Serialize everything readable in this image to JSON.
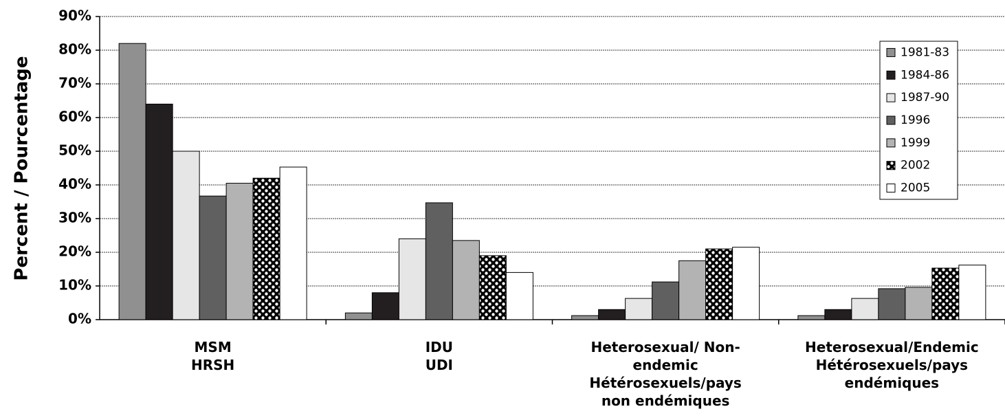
{
  "chart_data": {
    "type": "bar",
    "y_label": "Percent / Pourcentage",
    "categories": [
      "MSM\nHRSH",
      "IDU\nUDI",
      "Heterosexual/ Non-\nendemic\nHétérosexuels/pays\nnon endémiques",
      "Heterosexual/Endemic\nHétérosexuels/pays\nendémiques"
    ],
    "series": [
      {
        "name": "1981-83",
        "color": "#909090",
        "values": [
          82,
          2,
          1.2,
          1.2
        ]
      },
      {
        "name": "1984-86",
        "color": "#231f20",
        "values": [
          64,
          8,
          3,
          3
        ]
      },
      {
        "name": "1987-90",
        "color": "#e6e6e6",
        "values": [
          50,
          24,
          6.3,
          6.3
        ]
      },
      {
        "name": "1996",
        "color": "#606060",
        "values": [
          36.7,
          34.7,
          11.2,
          9.2
        ]
      },
      {
        "name": "1999",
        "color": "#b3b3b3",
        "values": [
          40.5,
          23.5,
          17.5,
          9.6
        ]
      },
      {
        "name": "2002",
        "color": "#000000",
        "pattern": "dots",
        "values": [
          42,
          19,
          21,
          15.3
        ]
      },
      {
        "name": "2005",
        "color": "#ffffff",
        "values": [
          45.3,
          14,
          21.5,
          16.2
        ]
      }
    ],
    "ylim": [
      0,
      90
    ],
    "yticks": [
      {
        "value": 0,
        "label": "0%"
      },
      {
        "value": 10,
        "label": "10%"
      },
      {
        "value": 20,
        "label": "20%"
      },
      {
        "value": 30,
        "label": "30%"
      },
      {
        "value": 40,
        "label": "40%"
      },
      {
        "value": 50,
        "label": "50%"
      },
      {
        "value": 60,
        "label": "60%"
      },
      {
        "value": 70,
        "label": "70%"
      },
      {
        "value": 80,
        "label": "80%"
      },
      {
        "value": 90,
        "label": "90%"
      }
    ],
    "grid": true,
    "legend": "upper right"
  }
}
